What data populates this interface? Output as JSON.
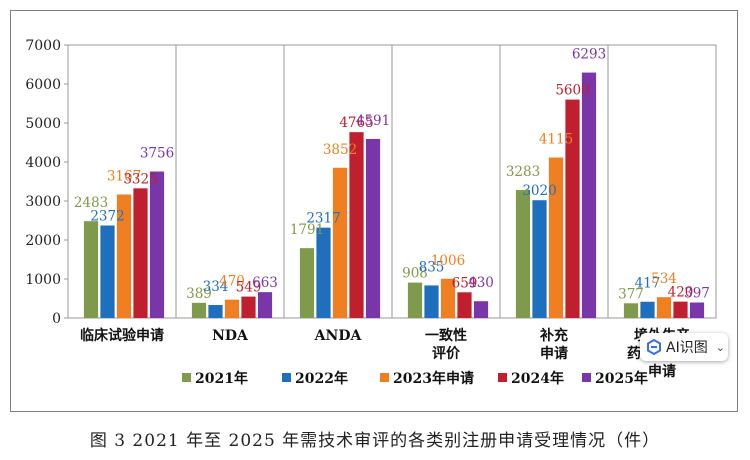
{
  "chart_data": {
    "type": "bar",
    "title": "",
    "xlabel": "",
    "ylabel": "",
    "ylim": [
      0,
      7000
    ],
    "yticks": [
      0,
      1000,
      2000,
      3000,
      4000,
      5000,
      6000,
      7000
    ],
    "grid": false,
    "legend_position": "bottom",
    "categories": [
      "临床试验申请",
      "NDA",
      "ANDA",
      "一致性\n评价",
      "补充\n申请",
      "境外生产\n药品再注册\n申请"
    ],
    "series": [
      {
        "name": "2021年",
        "color": "#7f9a4a",
        "values": [
          2483,
          389,
          1791,
          908,
          3283,
          377
        ]
      },
      {
        "name": "2022年",
        "color": "#1f6fbf",
        "values": [
          2372,
          334,
          2317,
          835,
          3020,
          417
        ]
      },
      {
        "name": "2023年申请",
        "color": "#f07f22",
        "values": [
          3167,
          470,
          3852,
          1006,
          4115,
          534
        ]
      },
      {
        "name": "2024年",
        "color": "#c0202e",
        "values": [
          3325,
          549,
          4765,
          659,
          5600,
          420
        ]
      },
      {
        "name": "2025年",
        "color": "#7a35a8",
        "values": [
          3756,
          663,
          4591,
          430,
          6293,
          397
        ]
      }
    ]
  },
  "caption": "图 3   2021 年至 2025 年需技术审评的各类别注册申请受理情况（件）",
  "overlay": {
    "label": "AI识图",
    "icon": "ai-logo-icon",
    "chevron": "⌄"
  }
}
